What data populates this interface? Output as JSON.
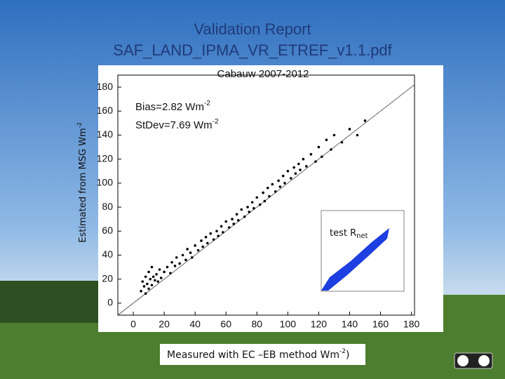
{
  "slide_title": [
    "Validation Report",
    "SAF_LAND_IPMA_VR_ETREF_v1.1.pdf"
  ],
  "chart_data": {
    "type": "scatter",
    "title": "Cabauw 2007-2012",
    "y_label": {
      "text": "Estimated from MSG  Wm",
      "sup": "-2"
    },
    "x_label": {
      "text": "Measured with EC –EB method Wm",
      "sup": "-2",
      "suffix": ")"
    },
    "annotations": [
      {
        "text": "Bias=2.82 Wm",
        "sup": "-2"
      },
      {
        "text": "StDev=7.69 Wm",
        "sup": "-2"
      }
    ],
    "inset_label": {
      "text": "test R",
      "sub": "net"
    },
    "xlim": [
      -10,
      182
    ],
    "ylim": [
      -10,
      190
    ],
    "xticks": [
      0,
      20,
      40,
      60,
      80,
      100,
      120,
      140,
      160,
      180
    ],
    "yticks": [
      0,
      20,
      40,
      60,
      80,
      100,
      120,
      140,
      160,
      180
    ],
    "series": [
      {
        "name": "Cabauw",
        "color": "#000000",
        "x": [
          5,
          6,
          7,
          8,
          8,
          9,
          10,
          10,
          11,
          12,
          12,
          13,
          14,
          15,
          16,
          17,
          18,
          20,
          22,
          24,
          25,
          27,
          28,
          30,
          32,
          34,
          35,
          37,
          38,
          40,
          42,
          44,
          45,
          47,
          48,
          50,
          52,
          54,
          55,
          57,
          58,
          60,
          62,
          64,
          65,
          67,
          68,
          70,
          72,
          74,
          75,
          77,
          78,
          80,
          82,
          84,
          85,
          87,
          88,
          90,
          92,
          94,
          95,
          97,
          98,
          100,
          102,
          104,
          105,
          107,
          108,
          110,
          112,
          115,
          118,
          120,
          122,
          125,
          128,
          130,
          135,
          140,
          145,
          150
        ],
        "y": [
          10,
          18,
          14,
          22,
          8,
          16,
          12,
          26,
          20,
          15,
          30,
          22,
          19,
          24,
          18,
          28,
          21,
          26,
          30,
          25,
          34,
          31,
          38,
          33,
          40,
          36,
          45,
          42,
          38,
          48,
          44,
          52,
          47,
          55,
          50,
          58,
          53,
          60,
          56,
          64,
          59,
          68,
          63,
          70,
          66,
          74,
          69,
          78,
          72,
          80,
          76,
          84,
          79,
          88,
          82,
          92,
          85,
          96,
          89,
          99,
          93,
          102,
          97,
          106,
          100,
          110,
          104,
          113,
          108,
          116,
          111,
          120,
          114,
          124,
          118,
          130,
          122,
          136,
          128,
          140,
          134,
          145,
          140,
          152
        ]
      }
    ]
  }
}
